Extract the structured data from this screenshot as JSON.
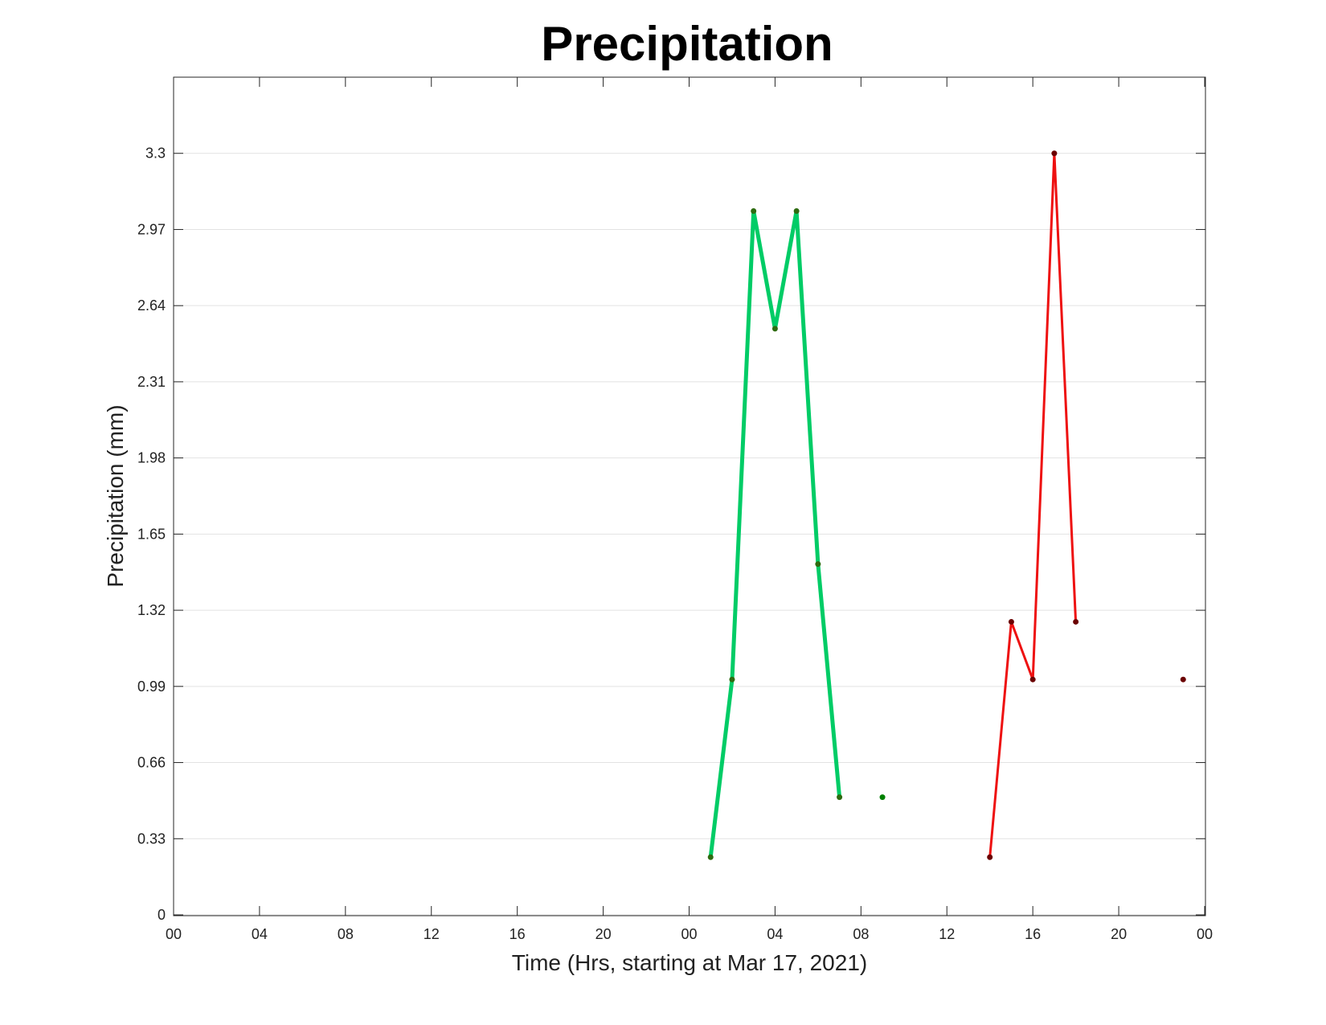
{
  "chart_data": {
    "type": "line",
    "title": "Precipitation",
    "xlabel": "Time (Hrs, starting at Mar 17, 2021)",
    "ylabel": "Precipitation (mm)",
    "xlim": [
      0,
      48
    ],
    "ylim": [
      0,
      3.63
    ],
    "grid": "horizontal",
    "x_tick_values": [
      0,
      4,
      8,
      12,
      16,
      20,
      24,
      28,
      32,
      36,
      40,
      44,
      48
    ],
    "x_tick_labels": [
      "00",
      "04",
      "08",
      "12",
      "16",
      "20",
      "00",
      "04",
      "08",
      "12",
      "16",
      "20",
      "00"
    ],
    "y_tick_values": [
      0,
      0.33,
      0.66,
      0.99,
      1.32,
      1.65,
      1.98,
      2.31,
      2.64,
      2.97,
      3.3
    ],
    "y_tick_labels": [
      "0",
      "0.33",
      "0.66",
      "0.99",
      "1.32",
      "1.65",
      "1.98",
      "2.31",
      "2.64",
      "2.97",
      "3.3"
    ],
    "series": [
      {
        "color": "#00cc66",
        "marker_color": "#2e6b10",
        "line_width": 5,
        "segments": [
          [
            [
              25,
              0.25
            ],
            [
              26,
              1.02
            ],
            [
              27,
              3.05
            ],
            [
              28,
              2.54
            ],
            [
              29,
              3.05
            ],
            [
              30,
              1.52
            ],
            [
              31,
              0.51
            ]
          ],
          [
            [
              33,
              0.51
            ]
          ]
        ],
        "isolated_marker_color": "#008000"
      },
      {
        "color": "#ee1111",
        "marker_color": "#6b0000",
        "line_width": 3,
        "segments": [
          [
            [
              38,
              0.25
            ],
            [
              39,
              1.27
            ],
            [
              40,
              1.02
            ],
            [
              41,
              3.3
            ],
            [
              42,
              1.27
            ]
          ],
          [
            [
              47,
              1.02
            ]
          ]
        ],
        "isolated_marker_color": "#6b0000"
      }
    ]
  }
}
